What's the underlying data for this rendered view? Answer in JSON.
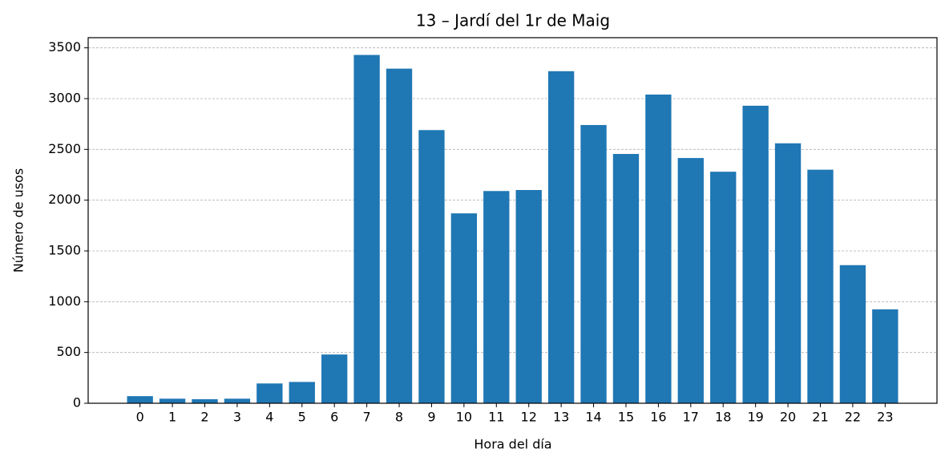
{
  "chart_data": {
    "type": "bar",
    "title": "13 – Jardí del 1r de Maig",
    "xlabel": "Hora del día",
    "ylabel": "Número de usos",
    "categories": [
      "0",
      "1",
      "2",
      "3",
      "4",
      "5",
      "6",
      "7",
      "8",
      "9",
      "10",
      "11",
      "12",
      "13",
      "14",
      "15",
      "16",
      "17",
      "18",
      "19",
      "20",
      "21",
      "22",
      "23"
    ],
    "values": [
      70,
      45,
      40,
      45,
      195,
      210,
      480,
      3430,
      3295,
      2690,
      1870,
      2090,
      2100,
      3270,
      2740,
      2455,
      3040,
      2415,
      2280,
      2930,
      2560,
      2300,
      1360,
      925
    ],
    "color": "#1f77b4",
    "ylim": [
      0,
      3600
    ],
    "yticks": [
      0,
      500,
      1000,
      1500,
      2000,
      2500,
      3000,
      3500
    ],
    "grid": true
  }
}
